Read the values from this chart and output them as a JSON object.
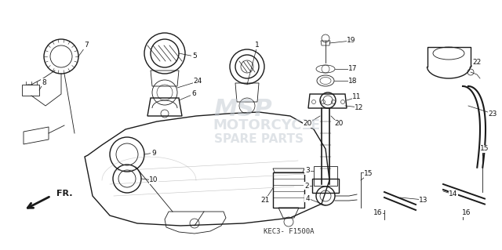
{
  "bg_color": "#ffffff",
  "watermark_color": "#c0c8d0",
  "watermark_alpha": 0.5,
  "code_text": "KEC3- F1500A",
  "figsize": [
    6.4,
    3.19
  ],
  "dpi": 100,
  "line_color": "#1a1a1a",
  "label_fontsize": 6.5,
  "label_color": "#111111",
  "xlim": [
    0,
    640
  ],
  "ylim": [
    0,
    319
  ]
}
